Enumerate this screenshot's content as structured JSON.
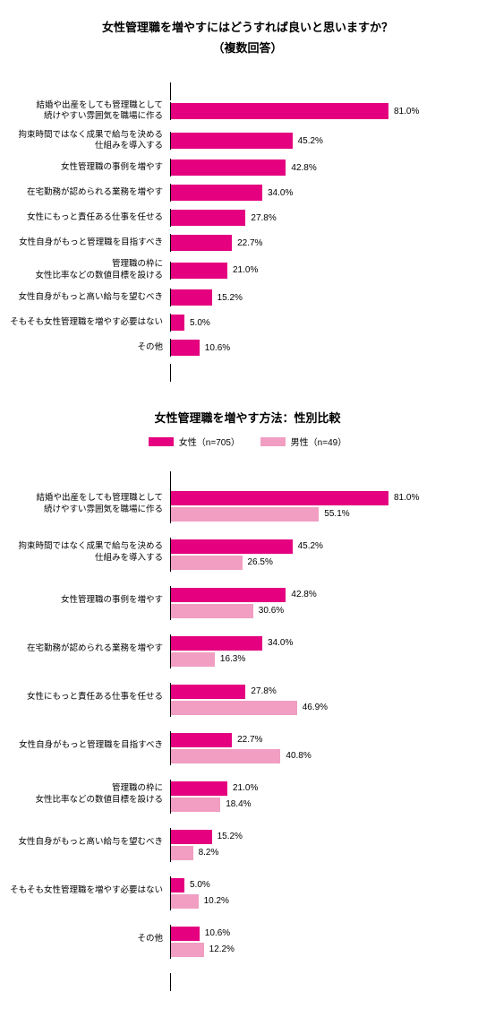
{
  "chart1": {
    "title": "女性管理職を増やすにはどうすれば良いと思いますか？",
    "subtitle": "（複数回答）",
    "type": "bar",
    "bar_color": "#e4007f",
    "text_color": "#000000",
    "max": 100,
    "label_fontsize": 9.5,
    "value_fontsize": 10,
    "items": [
      {
        "label": "結婚や出産をしても管理職として\n続けやすい雰囲気を職場に作る",
        "value": 81.0
      },
      {
        "label": "拘束時間ではなく成果で給与を決める\n仕組みを導入する",
        "value": 45.2
      },
      {
        "label": "女性管理職の事例を増やす",
        "value": 42.8
      },
      {
        "label": "在宅勤務が認められる業務を増やす",
        "value": 34.0
      },
      {
        "label": "女性にもっと責任ある仕事を任せる",
        "value": 27.8
      },
      {
        "label": "女性自身がもっと管理職を目指すべき",
        "value": 22.7
      },
      {
        "label": "管理職の枠に\n女性比率などの数値目標を設ける",
        "value": 21.0
      },
      {
        "label": "女性自身がもっと高い給与を望むべき",
        "value": 15.2
      },
      {
        "label": "そもそも女性管理職を増やす必要はない",
        "value": 5.0
      },
      {
        "label": "その他",
        "value": 10.6
      }
    ]
  },
  "chart2": {
    "title": "女性管理職を増やす方法：性別比較",
    "type": "grouped-bar",
    "colors": {
      "female": "#e4007f",
      "male": "#f19ec2"
    },
    "max": 100,
    "legend": {
      "female": "女性（n=705）",
      "male": "男性（n=49）"
    },
    "items": [
      {
        "label": "結婚や出産をしても管理職として\n続けやすい雰囲気を職場に作る",
        "female": 81.0,
        "male": 55.1
      },
      {
        "label": "拘束時間ではなく成果で給与を決める\n仕組みを導入する",
        "female": 45.2,
        "male": 26.5
      },
      {
        "label": "女性管理職の事例を増やす",
        "female": 42.8,
        "male": 30.6
      },
      {
        "label": "在宅勤務が認められる業務を増やす",
        "female": 34.0,
        "male": 16.3
      },
      {
        "label": "女性にもっと責任ある仕事を任せる",
        "female": 27.8,
        "male": 46.9
      },
      {
        "label": "女性自身がもっと管理職を目指すべき",
        "female": 22.7,
        "male": 40.8
      },
      {
        "label": "管理職の枠に\n女性比率などの数値目標を設ける",
        "female": 21.0,
        "male": 18.4
      },
      {
        "label": "女性自身がもっと高い給与を望むべき",
        "female": 15.2,
        "male": 8.2
      },
      {
        "label": "そもそも女性管理職を増やす必要はない",
        "female": 5.0,
        "male": 10.2
      },
      {
        "label": "その他",
        "female": 10.6,
        "male": 12.2
      }
    ]
  }
}
